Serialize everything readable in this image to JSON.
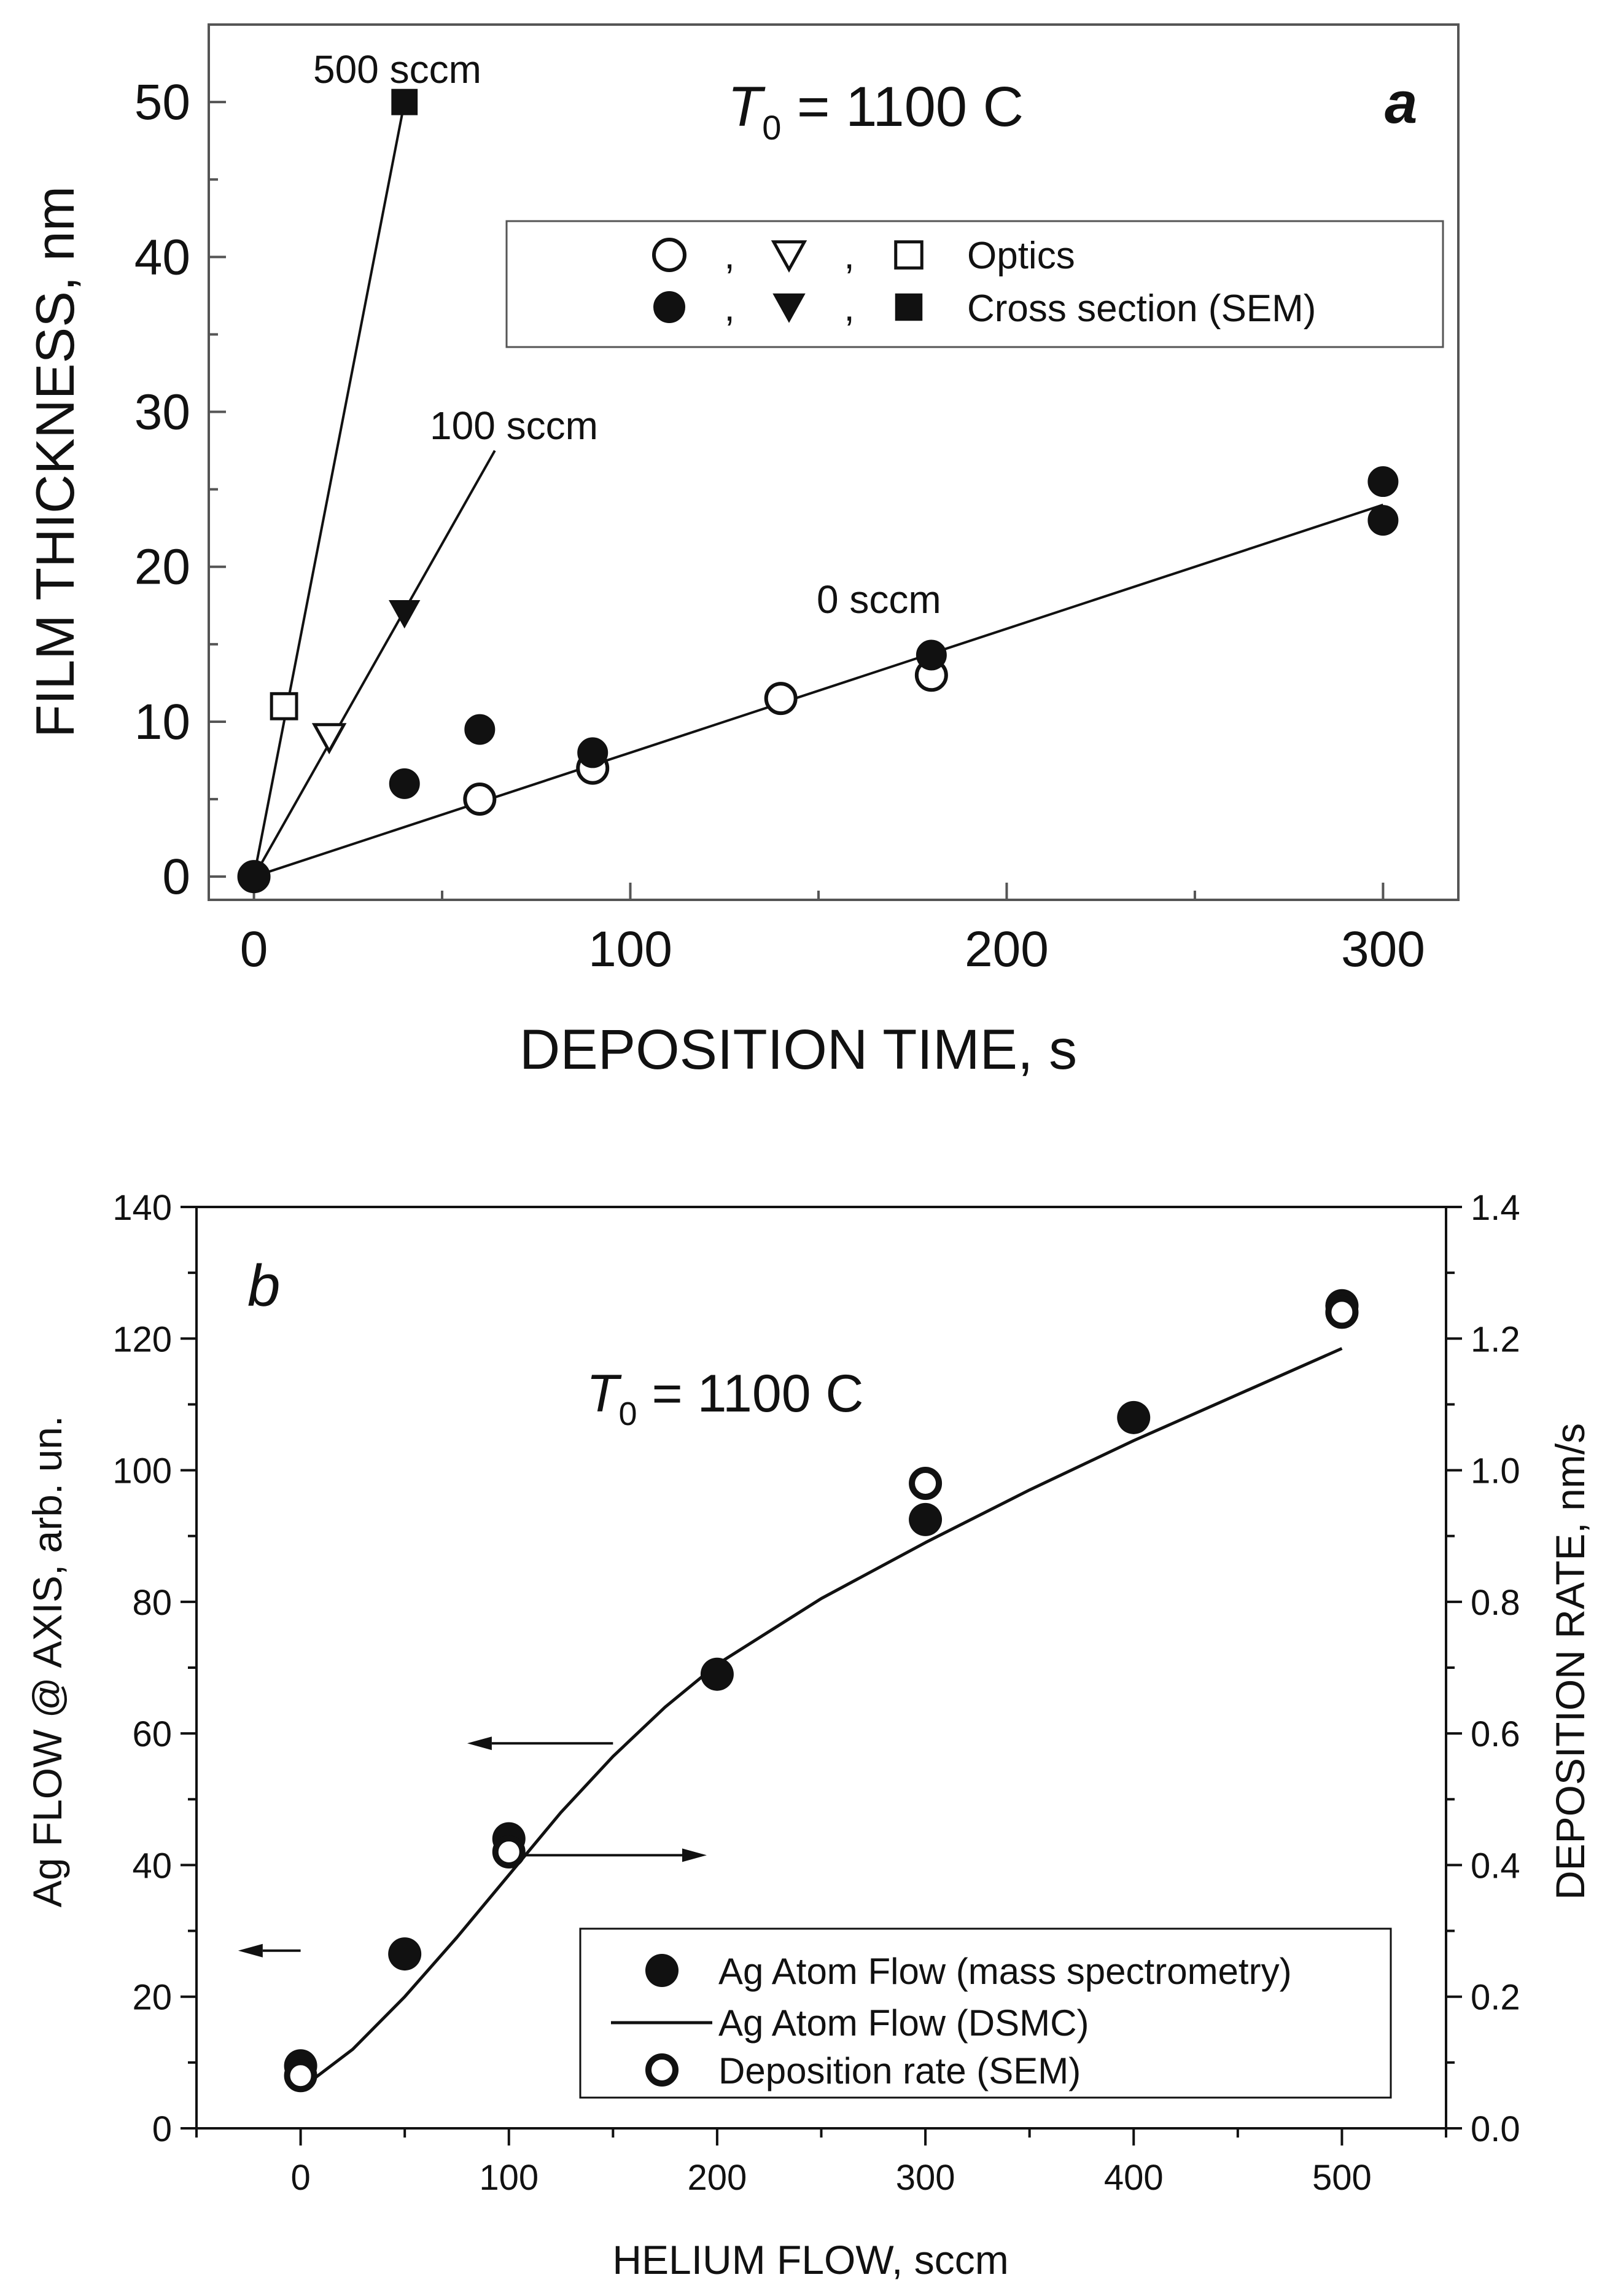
{
  "chart_data": [
    {
      "type": "scatter",
      "panel_label": "a",
      "xlabel": "DEPOSITION TIME, s",
      "ylabel": "FILM THICKNESS, nm",
      "xlim": [
        -12,
        320
      ],
      "ylim": [
        -1.5,
        55
      ],
      "xticks": [
        0,
        100,
        200,
        300
      ],
      "yticks": [
        0,
        10,
        20,
        30,
        40,
        50
      ],
      "xtick_labels": [
        "0",
        "100",
        "200",
        "300"
      ],
      "ytick_labels": [
        "0",
        "10",
        "20",
        "30",
        "40",
        "50"
      ],
      "condition": {
        "symbol": "T",
        "subscript": "0",
        "value": " = 1100 C"
      },
      "series": [
        {
          "name": "0 sccm (Optics)",
          "marker": "circle-open",
          "points": [
            [
              0,
              0
            ],
            [
              60,
              5
            ],
            [
              90,
              7
            ],
            [
              140,
              11.5
            ],
            [
              180,
              13
            ]
          ]
        },
        {
          "name": "0 sccm (Cross section SEM)",
          "marker": "circle-filled",
          "points": [
            [
              0,
              0
            ],
            [
              40,
              6
            ],
            [
              60,
              9.5
            ],
            [
              90,
              8
            ],
            [
              180,
              14.3
            ],
            [
              300,
              25.5
            ],
            [
              300,
              23
            ]
          ]
        },
        {
          "name": "100 sccm (Optics)",
          "marker": "triangle-open",
          "points": [
            [
              20,
              9
            ]
          ]
        },
        {
          "name": "100 sccm (Cross section SEM)",
          "marker": "triangle-filled",
          "points": [
            [
              40,
              17
            ]
          ]
        },
        {
          "name": "500 sccm (Optics)",
          "marker": "square-open",
          "points": [
            [
              8,
              11
            ]
          ]
        },
        {
          "name": "500 sccm (Cross section SEM)",
          "marker": "square-filled",
          "points": [
            [
              40,
              50
            ]
          ]
        }
      ],
      "fit_lines": [
        {
          "name": "0 sccm",
          "from": [
            0,
            0
          ],
          "to": [
            300,
            24
          ]
        },
        {
          "name": "100 sccm",
          "from": [
            0,
            0
          ],
          "to": [
            64,
            27.5
          ]
        },
        {
          "name": "500 sccm",
          "from": [
            0,
            0
          ],
          "to": [
            40,
            50
          ]
        }
      ],
      "annotations": [
        {
          "text": "500 sccm",
          "x": 45,
          "y": 52.8
        },
        {
          "text": "100 sccm",
          "x": 73,
          "y": 29.8
        },
        {
          "text": "0 sccm",
          "x": 170,
          "y": 18.6
        }
      ],
      "legend": {
        "position": "upper-right",
        "entries": [
          {
            "markers": [
              "circle-open",
              "triangle-open",
              "square-open"
            ],
            "separators": [
              ",",
              ","
            ],
            "label": "Optics"
          },
          {
            "markers": [
              "circle-filled",
              "triangle-filled",
              "square-filled"
            ],
            "separators": [
              ",",
              ","
            ],
            "label": "Cross section (SEM)"
          }
        ]
      }
    },
    {
      "type": "scatter",
      "panel_label": "b",
      "xlabel": "HELIUM FLOW, sccm",
      "ylabel": "Ag FLOW @ AXIS, arb. un.",
      "y2label": "DEPOSITION RATE, nm/s",
      "xlim": [
        -50,
        550
      ],
      "ylim": [
        0,
        140
      ],
      "y2lim": [
        0,
        1.4
      ],
      "xticks": [
        0,
        100,
        200,
        300,
        400,
        500
      ],
      "yticks": [
        0,
        20,
        40,
        60,
        80,
        100,
        120,
        140
      ],
      "y2ticks": [
        0,
        0.2,
        0.4,
        0.6,
        0.8,
        1.0,
        1.2,
        1.4
      ],
      "xtick_labels": [
        "0",
        "100",
        "200",
        "300",
        "400",
        "500"
      ],
      "ytick_labels": [
        "0",
        "20",
        "40",
        "60",
        "80",
        "100",
        "120",
        "140"
      ],
      "y2tick_labels": [
        "0.0",
        "0.2",
        "0.4",
        "0.6",
        "0.8",
        "1.0",
        "1.2",
        "1.4"
      ],
      "condition": {
        "symbol": "T",
        "subscript": "0",
        "value": " = 1100 C"
      },
      "series": [
        {
          "name": "Ag Atom Flow (mass spectrometry)",
          "axis": "left",
          "marker": "circle-filled",
          "points": [
            [
              0,
              9.5
            ],
            [
              50,
              26.5
            ],
            [
              100,
              44
            ],
            [
              200,
              69
            ],
            [
              300,
              92.5
            ],
            [
              400,
              108
            ],
            [
              500,
              125
            ]
          ]
        },
        {
          "name": "Ag Atom Flow (DSMC)",
          "axis": "left",
          "marker": "line",
          "points": [
            [
              0,
              6
            ],
            [
              25,
              12
            ],
            [
              50,
              20
            ],
            [
              75,
              29
            ],
            [
              100,
              38.5
            ],
            [
              125,
              48
            ],
            [
              150,
              56.5
            ],
            [
              175,
              64
            ],
            [
              200,
              70.5
            ],
            [
              250,
              80.5
            ],
            [
              300,
              89
            ],
            [
              350,
              97
            ],
            [
              400,
              104.5
            ],
            [
              450,
              111.5
            ],
            [
              500,
              118.5
            ]
          ]
        },
        {
          "name": "Deposition rate (SEM)",
          "axis": "right",
          "marker": "circle-open",
          "points": [
            [
              0,
              0.08
            ],
            [
              100,
              0.42
            ],
            [
              300,
              0.98
            ],
            [
              500,
              1.24
            ]
          ]
        }
      ],
      "arrows": [
        {
          "from": [
            150,
            58.5
          ],
          "to": [
            80,
            58.5
          ]
        },
        {
          "from": [
            0,
            27
          ],
          "to": [
            -30,
            27
          ]
        },
        {
          "from": [
            105,
            41.5
          ],
          "to": [
            195,
            41.5
          ]
        }
      ],
      "legend": {
        "position": "lower-right",
        "entries": [
          {
            "marker": "circle-filled",
            "label": "Ag Atom Flow (mass spectrometry)"
          },
          {
            "marker": "line",
            "label": "Ag Atom Flow (DSMC)"
          },
          {
            "marker": "circle-open",
            "label": "Deposition rate (SEM)"
          }
        ]
      }
    }
  ]
}
